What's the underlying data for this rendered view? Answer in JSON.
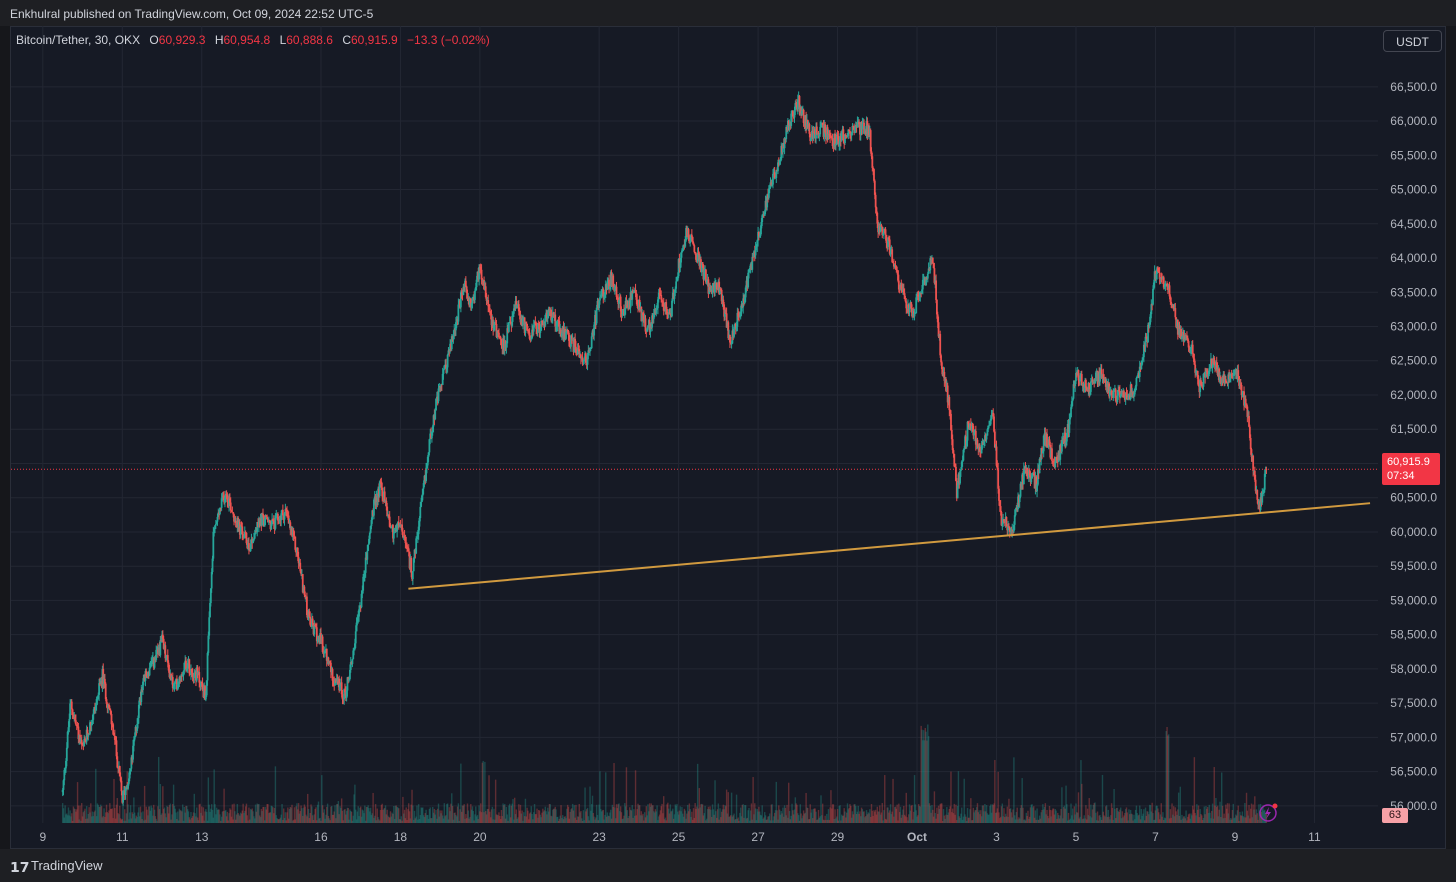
{
  "header": {
    "published": "Enkhulral published on TradingView.com, Oct 09, 2024 22:52 UTC-5"
  },
  "legend": {
    "symbol": "Bitcoin/Tether, 30, OKX",
    "o_label": "O",
    "o_value": "60,929.3",
    "h_label": "H",
    "h_value": "60,954.8",
    "l_label": "L",
    "l_value": "60,888.6",
    "c_label": "C",
    "c_value": "60,915.9",
    "change": "−13.3 (−0.02%)"
  },
  "currency_button": "USDT",
  "price_tag": {
    "price": "60,915.9",
    "countdown": "07:34"
  },
  "volume_tag": "63",
  "footer": {
    "logo_icon": "tradingview-logo-icon",
    "name": "TradingView"
  },
  "colors": {
    "up": "#26a69a",
    "down": "#ef5350",
    "trendline": "#d19a3f",
    "last_price": "#f23645"
  },
  "chart_data": {
    "type": "candlestick",
    "y_ticks": [
      "66,500.0",
      "66,000.0",
      "65,500.0",
      "65,000.0",
      "64,500.0",
      "64,000.0",
      "63,500.0",
      "63,000.0",
      "62,500.0",
      "62,000.0",
      "61,500.0",
      "61,000.0",
      "60,500.0",
      "60,000.0",
      "59,500.0",
      "59,000.0",
      "58,500.0",
      "58,000.0",
      "57,500.0",
      "57,000.0",
      "56,500.0",
      "56,000.0"
    ],
    "y_tick_values": [
      66500,
      66000,
      65500,
      65000,
      64500,
      64000,
      63500,
      63000,
      62500,
      62000,
      61500,
      61000,
      60500,
      60000,
      59500,
      59000,
      58500,
      58000,
      57500,
      57000,
      56500,
      56000
    ],
    "ylim": [
      55750,
      66950
    ],
    "x_ticks": [
      "9",
      "11",
      "13",
      "16",
      "18",
      "20",
      "23",
      "25",
      "27",
      "29",
      "Oct",
      "3",
      "5",
      "7",
      "9",
      "11"
    ],
    "x_tick_days": [
      9,
      11,
      13,
      16,
      18,
      20,
      23,
      25,
      27,
      29,
      31,
      33,
      35,
      37,
      39,
      41
    ],
    "xlim": [
      8.2,
      42.6
    ],
    "last_price": 60915.9,
    "path": [
      [
        9.5,
        56200
      ],
      [
        9.7,
        57500
      ],
      [
        10.0,
        56800
      ],
      [
        10.3,
        57400
      ],
      [
        10.5,
        57900
      ],
      [
        10.8,
        57000
      ],
      [
        11.0,
        56100
      ],
      [
        11.2,
        56500
      ],
      [
        11.5,
        57800
      ],
      [
        11.8,
        58100
      ],
      [
        12.0,
        58400
      ],
      [
        12.3,
        57700
      ],
      [
        12.6,
        58100
      ],
      [
        12.9,
        57900
      ],
      [
        13.1,
        57600
      ],
      [
        13.3,
        60000
      ],
      [
        13.6,
        60600
      ],
      [
        13.9,
        60100
      ],
      [
        14.2,
        59800
      ],
      [
        14.5,
        60200
      ],
      [
        14.8,
        60100
      ],
      [
        15.1,
        60300
      ],
      [
        15.4,
        59700
      ],
      [
        15.7,
        58700
      ],
      [
        16.0,
        58400
      ],
      [
        16.3,
        57900
      ],
      [
        16.6,
        57600
      ],
      [
        16.8,
        58200
      ],
      [
        17.0,
        59000
      ],
      [
        17.3,
        60300
      ],
      [
        17.5,
        60700
      ],
      [
        17.8,
        60000
      ],
      [
        18.0,
        60100
      ],
      [
        18.3,
        59400
      ],
      [
        18.6,
        60700
      ],
      [
        18.8,
        61600
      ],
      [
        19.0,
        62100
      ],
      [
        19.3,
        62800
      ],
      [
        19.6,
        63600
      ],
      [
        19.8,
        63300
      ],
      [
        20.0,
        63900
      ],
      [
        20.3,
        63100
      ],
      [
        20.6,
        62700
      ],
      [
        20.9,
        63300
      ],
      [
        21.2,
        62900
      ],
      [
        21.5,
        63000
      ],
      [
        21.8,
        63200
      ],
      [
        22.1,
        62900
      ],
      [
        22.4,
        62700
      ],
      [
        22.7,
        62500
      ],
      [
        23.0,
        63400
      ],
      [
        23.3,
        63700
      ],
      [
        23.6,
        63200
      ],
      [
        23.9,
        63500
      ],
      [
        24.2,
        62900
      ],
      [
        24.5,
        63400
      ],
      [
        24.8,
        63200
      ],
      [
        25.0,
        63900
      ],
      [
        25.2,
        64400
      ],
      [
        25.5,
        64000
      ],
      [
        25.8,
        63500
      ],
      [
        26.0,
        63600
      ],
      [
        26.3,
        62800
      ],
      [
        26.6,
        63300
      ],
      [
        26.9,
        64100
      ],
      [
        27.2,
        64800
      ],
      [
        27.5,
        65400
      ],
      [
        27.8,
        66000
      ],
      [
        28.0,
        66300
      ],
      [
        28.3,
        65800
      ],
      [
        28.6,
        65900
      ],
      [
        28.9,
        65700
      ],
      [
        29.2,
        65800
      ],
      [
        29.5,
        65900
      ],
      [
        29.8,
        65900
      ],
      [
        30.0,
        64500
      ],
      [
        30.3,
        64200
      ],
      [
        30.6,
        63500
      ],
      [
        30.9,
        63200
      ],
      [
        31.2,
        63700
      ],
      [
        31.4,
        64000
      ],
      [
        31.6,
        62500
      ],
      [
        31.8,
        61900
      ],
      [
        32.0,
        60600
      ],
      [
        32.3,
        61600
      ],
      [
        32.6,
        61200
      ],
      [
        32.9,
        61800
      ],
      [
        33.1,
        60200
      ],
      [
        33.4,
        60000
      ],
      [
        33.7,
        60900
      ],
      [
        34.0,
        60700
      ],
      [
        34.2,
        61400
      ],
      [
        34.5,
        61000
      ],
      [
        34.8,
        61500
      ],
      [
        35.0,
        62300
      ],
      [
        35.3,
        62100
      ],
      [
        35.6,
        62300
      ],
      [
        35.9,
        62000
      ],
      [
        36.2,
        62000
      ],
      [
        36.5,
        62100
      ],
      [
        36.8,
        62900
      ],
      [
        37.0,
        63800
      ],
      [
        37.3,
        63600
      ],
      [
        37.6,
        62900
      ],
      [
        37.9,
        62700
      ],
      [
        38.1,
        62100
      ],
      [
        38.4,
        62500
      ],
      [
        38.7,
        62200
      ],
      [
        39.0,
        62400
      ],
      [
        39.3,
        61800
      ],
      [
        39.5,
        60700
      ],
      [
        39.6,
        60350
      ],
      [
        39.8,
        60900
      ]
    ],
    "trendline": {
      "x1": 18.2,
      "y1": 59170,
      "x2": 42.4,
      "y2": 60420
    }
  }
}
